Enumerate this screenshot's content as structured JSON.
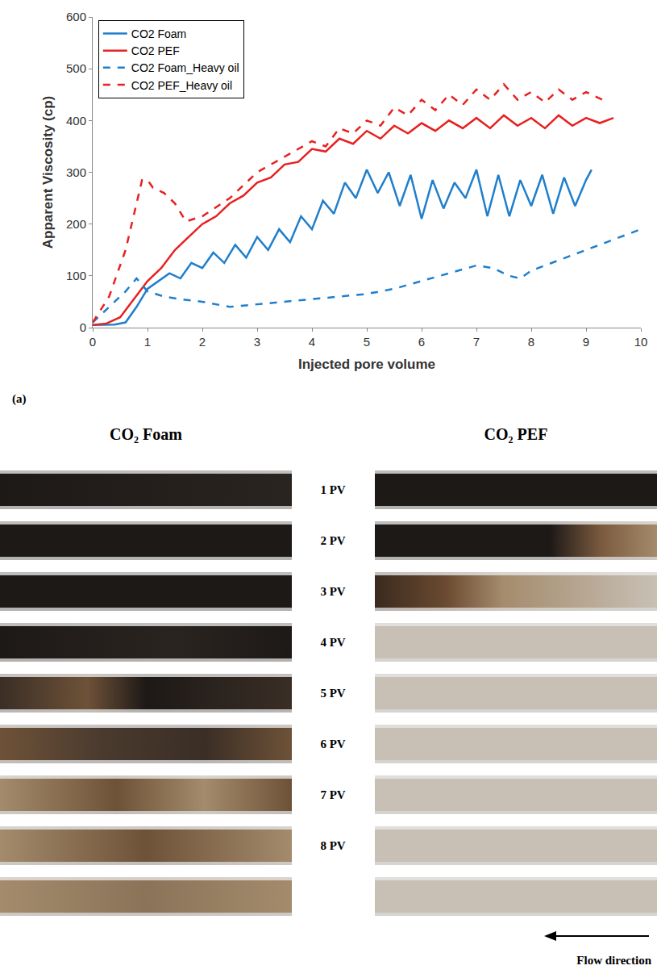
{
  "chart_data": {
    "type": "line",
    "panel_label": "(a)",
    "x_label": "Injected pore volume",
    "y_label": "Apparent Viscosity (cp)",
    "xlim": [
      0,
      10
    ],
    "xticks": [
      0,
      1,
      2,
      3,
      4,
      5,
      6,
      7,
      8,
      9,
      10
    ],
    "ylim": [
      0,
      600
    ],
    "yticks": [
      0,
      100,
      200,
      300,
      400,
      500,
      600
    ],
    "grid": false,
    "legend": "upper left",
    "series": [
      {
        "name": "CO2 Foam",
        "color": "#1f7fcc",
        "line_style": "solid",
        "x": [
          0,
          0.2,
          0.4,
          0.6,
          0.8,
          1.0,
          1.2,
          1.4,
          1.6,
          1.8,
          2.0,
          2.2,
          2.4,
          2.6,
          2.8,
          3.0,
          3.2,
          3.4,
          3.6,
          3.8,
          4.0,
          4.2,
          4.4,
          4.6,
          4.8,
          5.0,
          5.2,
          5.4,
          5.6,
          5.8,
          6.0,
          6.2,
          6.4,
          6.6,
          6.8,
          7.0,
          7.2,
          7.4,
          7.6,
          7.8,
          8.0,
          8.2,
          8.4,
          8.6,
          8.8,
          9.0,
          9.1
        ],
        "values": [
          5,
          5,
          6,
          10,
          40,
          75,
          90,
          105,
          95,
          125,
          115,
          145,
          125,
          160,
          135,
          175,
          150,
          190,
          165,
          215,
          190,
          245,
          220,
          280,
          250,
          305,
          260,
          300,
          235,
          295,
          210,
          285,
          230,
          280,
          250,
          305,
          215,
          295,
          215,
          285,
          235,
          295,
          220,
          290,
          235,
          285,
          305
        ]
      },
      {
        "name": "CO2 PEF",
        "color": "#e8201f",
        "line_style": "solid",
        "x": [
          0,
          0.25,
          0.5,
          0.75,
          1,
          1.25,
          1.5,
          1.75,
          2,
          2.25,
          2.5,
          2.75,
          3,
          3.25,
          3.5,
          3.75,
          4,
          4.25,
          4.5,
          4.75,
          5,
          5.25,
          5.5,
          5.75,
          6,
          6.25,
          6.5,
          6.75,
          7,
          7.25,
          7.5,
          7.75,
          8,
          8.25,
          8.5,
          8.75,
          9,
          9.25,
          9.5
        ],
        "values": [
          5,
          8,
          20,
          55,
          90,
          115,
          150,
          175,
          200,
          215,
          240,
          255,
          280,
          290,
          315,
          320,
          345,
          340,
          365,
          355,
          380,
          365,
          390,
          375,
          395,
          380,
          400,
          385,
          405,
          385,
          410,
          390,
          405,
          385,
          410,
          390,
          405,
          395,
          405
        ]
      },
      {
        "name": "CO2 Foam_Heavy oil",
        "color": "#1f7fcc",
        "line_style": "dash",
        "x": [
          0,
          0.3,
          0.6,
          0.8,
          1,
          1.3,
          1.6,
          2,
          2.5,
          3,
          3.5,
          4,
          4.5,
          5,
          5.5,
          6,
          6.5,
          7,
          7.3,
          7.6,
          7.8,
          8,
          8.5,
          9,
          9.5,
          10
        ],
        "values": [
          10,
          40,
          70,
          95,
          70,
          60,
          55,
          50,
          40,
          45,
          50,
          55,
          60,
          65,
          75,
          90,
          105,
          120,
          115,
          100,
          95,
          110,
          130,
          150,
          170,
          190
        ]
      },
      {
        "name": "CO2 PEF_Heavy oil",
        "color": "#e8201f",
        "line_style": "dash",
        "x": [
          0,
          0.3,
          0.6,
          0.8,
          0.9,
          1,
          1.1,
          1.3,
          1.5,
          1.7,
          2,
          2.5,
          3,
          3.5,
          4,
          4.25,
          4.5,
          4.75,
          5,
          5.25,
          5.5,
          5.75,
          6,
          6.25,
          6.5,
          6.75,
          7,
          7.25,
          7.5,
          7.75,
          8,
          8.25,
          8.5,
          8.75,
          9,
          9.3
        ],
        "values": [
          10,
          60,
          150,
          240,
          285,
          285,
          270,
          260,
          240,
          205,
          215,
          250,
          300,
          330,
          360,
          350,
          385,
          375,
          400,
          390,
          425,
          410,
          440,
          420,
          450,
          430,
          460,
          440,
          470,
          440,
          455,
          435,
          460,
          440,
          455,
          440
        ]
      }
    ]
  },
  "photos": {
    "left_title": "CO₂ Foam",
    "right_title": "CO₂ PEF",
    "row_labels": [
      "1 PV",
      "2 PV",
      "3 PV",
      "4 PV",
      "5 PV",
      "6 PV",
      "7 PV",
      "8 PV"
    ],
    "flow_label": "Flow direction"
  }
}
